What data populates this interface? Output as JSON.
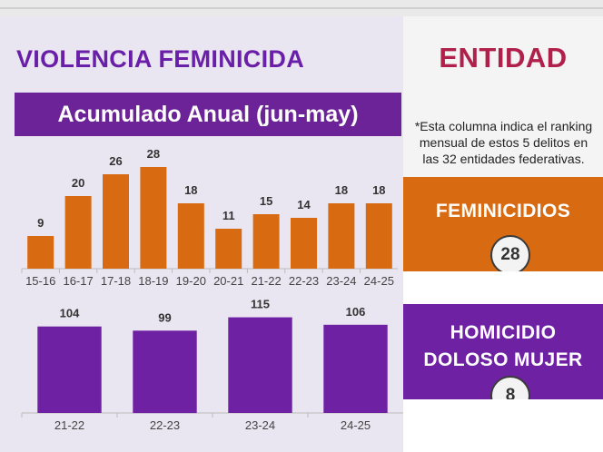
{
  "header": {
    "title": "VIOLENCIA FEMINICIDA",
    "subtitle": "Acumulado Anual (jun-may)"
  },
  "entidad": {
    "title": "ENTIDAD",
    "note": "*Esta columna indica el ranking mensual de estos 5 delitos en las 32 entidades federativas.",
    "items": [
      {
        "label": "FEMINICIDIOS",
        "rank": "28",
        "color": "#d86a12"
      },
      {
        "label_line1": "HOMICIDIO",
        "label_line2": "DOLOSO MUJER",
        "rank": "8",
        "color": "#6e22a3"
      }
    ]
  },
  "chart_data": [
    {
      "type": "bar",
      "categories": [
        "15-16",
        "16-17",
        "17-18",
        "18-19",
        "19-20",
        "20-21",
        "21-22",
        "22-23",
        "23-24",
        "24-25"
      ],
      "values": [
        9,
        20,
        26,
        28,
        18,
        11,
        15,
        14,
        18,
        18
      ],
      "color": "#d86a12",
      "ylim": [
        0,
        30
      ]
    },
    {
      "type": "bar",
      "categories": [
        "21-22",
        "22-23",
        "23-24",
        "24-25"
      ],
      "values": [
        104,
        99,
        115,
        106
      ],
      "color": "#6e22a3",
      "ylim": [
        0,
        120
      ]
    }
  ]
}
